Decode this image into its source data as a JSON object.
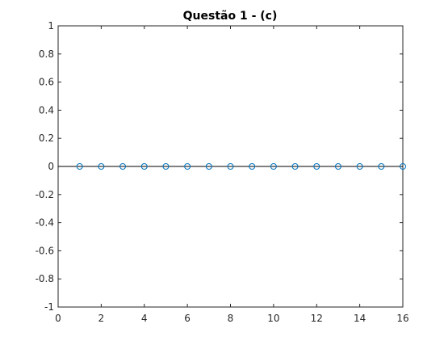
{
  "chart_data": {
    "type": "stem",
    "title": "Questão 1 - (c)",
    "xlabel": "",
    "ylabel": "",
    "xlim": [
      0,
      16
    ],
    "ylim": [
      -1,
      1
    ],
    "x_ticks": [
      0,
      2,
      4,
      6,
      8,
      10,
      12,
      14,
      16
    ],
    "x_tick_labels": [
      "0",
      "2",
      "4",
      "6",
      "8",
      "10",
      "12",
      "14",
      "16"
    ],
    "y_ticks": [
      1,
      0.8,
      0.6,
      0.4,
      0.2,
      0,
      -0.2,
      -0.4,
      -0.6,
      -0.8,
      -1
    ],
    "y_tick_labels": [
      "1",
      "0.8",
      "0.6",
      "0.4",
      "0.2",
      "0",
      "-0.2",
      "-0.4",
      "-0.6",
      "-0.8",
      "-1"
    ],
    "grid": false,
    "baseline": 0,
    "x": [
      1,
      2,
      3,
      4,
      5,
      6,
      7,
      8,
      9,
      10,
      11,
      12,
      13,
      14,
      15,
      16
    ],
    "values": [
      0,
      0,
      0,
      0,
      0,
      0,
      0,
      0,
      0,
      0,
      0,
      0,
      0,
      0,
      0,
      0
    ],
    "colors": {
      "marker": "#0072bd",
      "axis": "#262626",
      "baseline": "#000000"
    }
  }
}
